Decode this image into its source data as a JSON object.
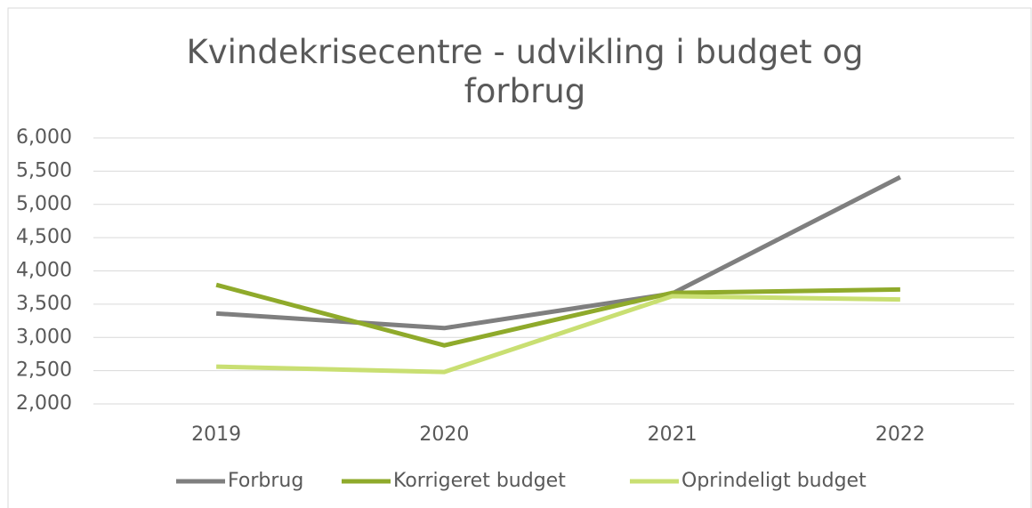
{
  "chart_data": {
    "type": "line",
    "title": "Kvindekrisecentre - udvikling i budget og forbrug",
    "categories": [
      "2019",
      "2020",
      "2021",
      "2022"
    ],
    "series": [
      {
        "name": "Forbrug",
        "color": "#7f7f7f",
        "values": [
          3360,
          3140,
          3660,
          5410
        ]
      },
      {
        "name": "Korrigeret budget",
        "color": "#8faa2b",
        "values": [
          3790,
          2880,
          3670,
          3720
        ]
      },
      {
        "name": "Oprindeligt budget",
        "color": "#c9df72",
        "values": [
          2560,
          2480,
          3620,
          3570
        ]
      }
    ],
    "ylim": [
      2000,
      6000
    ],
    "yticks": [
      {
        "value": 2000,
        "label": "2,000"
      },
      {
        "value": 2500,
        "label": "2,500"
      },
      {
        "value": 3000,
        "label": "3,000"
      },
      {
        "value": 3500,
        "label": "3,500"
      },
      {
        "value": 4000,
        "label": "4,000"
      },
      {
        "value": 4500,
        "label": "4,500"
      },
      {
        "value": 5000,
        "label": "5,000"
      },
      {
        "value": 5500,
        "label": "5,500"
      },
      {
        "value": 6000,
        "label": "6,000"
      }
    ],
    "grid": true,
    "legend": "bottom"
  }
}
